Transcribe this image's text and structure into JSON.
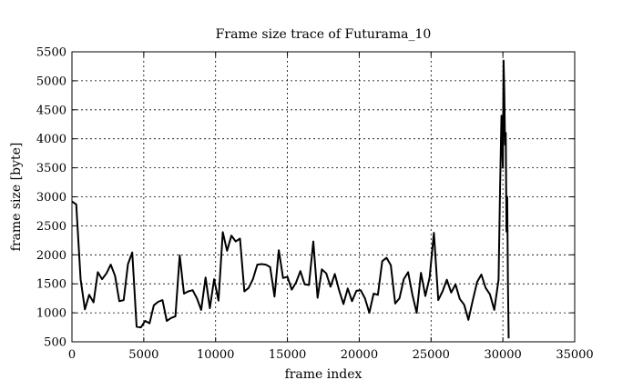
{
  "chart_data": {
    "type": "line",
    "title": "Frame size trace of Futurama_10",
    "xlabel": "frame index",
    "ylabel": "frame size [byte]",
    "xlim": [
      0,
      35000
    ],
    "ylim": [
      500,
      5500
    ],
    "xticks": [
      0,
      5000,
      10000,
      15000,
      20000,
      25000,
      30000,
      35000
    ],
    "yticks": [
      500,
      1000,
      1500,
      2000,
      2500,
      3000,
      3500,
      4000,
      4500,
      5000,
      5500
    ],
    "grid": true,
    "legend": "none",
    "color": "#000000",
    "series": [
      {
        "x": [
          0,
          300,
          600,
          900,
          1200,
          1500,
          1800,
          2100,
          2400,
          2700,
          3000,
          3300,
          3600,
          3900,
          4200,
          4500,
          4800,
          5100,
          5400,
          5700,
          6000,
          6300,
          6600,
          6900,
          7200,
          7500,
          7800,
          8100,
          8400,
          8700,
          9000,
          9300,
          9600,
          9900,
          10200,
          10500,
          10800,
          11100,
          11400,
          11700,
          12000,
          12300,
          12600,
          12900,
          13200,
          13500,
          13800,
          14100,
          14400,
          14700,
          15000,
          15300,
          15600,
          15900,
          16200,
          16500,
          16800,
          17100,
          17400,
          17700,
          18000,
          18300,
          18600,
          18900,
          19200,
          19500,
          19800,
          20100,
          20400,
          20700,
          21000,
          21300,
          21600,
          21900,
          22200,
          22500,
          22800,
          23100,
          23400,
          23700,
          24000,
          24300,
          24600,
          24900,
          25200,
          25500,
          25800,
          26100,
          26400,
          26700,
          27000,
          27300,
          27600,
          27900,
          28200,
          28500,
          28800,
          29100,
          29400,
          29700,
          29800,
          29900,
          30000,
          30050,
          30100,
          30150,
          30200,
          30250,
          30300,
          30350,
          30400
        ],
        "y": [
          2920,
          2870,
          1580,
          1060,
          1310,
          1180,
          1700,
          1580,
          1680,
          1830,
          1640,
          1200,
          1220,
          1840,
          2040,
          760,
          750,
          860,
          820,
          1130,
          1190,
          1220,
          860,
          910,
          940,
          1990,
          1330,
          1370,
          1390,
          1250,
          1050,
          1610,
          1080,
          1580,
          1210,
          2390,
          2070,
          2330,
          2230,
          2280,
          1370,
          1430,
          1580,
          1830,
          1840,
          1830,
          1790,
          1280,
          2080,
          1600,
          1620,
          1400,
          1520,
          1720,
          1490,
          1480,
          2230,
          1260,
          1750,
          1680,
          1450,
          1670,
          1390,
          1150,
          1420,
          1200,
          1380,
          1390,
          1250,
          1000,
          1330,
          1310,
          1890,
          1950,
          1820,
          1160,
          1250,
          1580,
          1700,
          1310,
          1000,
          1690,
          1290,
          1610,
          2380,
          1220,
          1370,
          1570,
          1350,
          1490,
          1240,
          1140,
          880,
          1210,
          1530,
          1660,
          1430,
          1320,
          1050,
          1570,
          3100,
          4400,
          3500,
          5350,
          4800,
          3900,
          4100,
          2400,
          3000,
          1500,
          560
        ]
      }
    ]
  }
}
